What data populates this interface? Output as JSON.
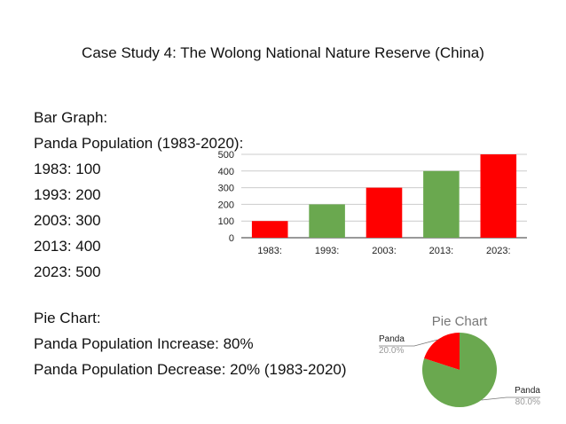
{
  "slide": {
    "title": "Case Study 4: The Wolong National Nature Reserve (China)"
  },
  "bar_section": {
    "heading": "Bar Graph:",
    "subheading": "Panda Population (1983-2020):",
    "lines": [
      "1983: 100",
      "1993: 200",
      "2003: 300",
      "2013: 400",
      "2023: 500"
    ]
  },
  "pie_section": {
    "heading": "Pie Chart:",
    "lines": [
      "Panda Population Increase: 80%",
      "Panda Population Decrease: 20% (1983-2020)"
    ]
  },
  "chart_data": [
    {
      "type": "bar",
      "title": "",
      "categories": [
        "1983:",
        "1993:",
        "2003:",
        "2013:",
        "2023:"
      ],
      "values": [
        100,
        200,
        300,
        400,
        500
      ],
      "colors": [
        "#ff0000",
        "#6aa84f",
        "#ff0000",
        "#6aa84f",
        "#ff0000"
      ],
      "yticks": [
        0,
        100,
        200,
        300,
        400,
        500
      ],
      "ylim": [
        0,
        500
      ],
      "xlabel": "",
      "ylabel": "",
      "grid": true
    },
    {
      "type": "pie",
      "title": "Pie Chart",
      "slices": [
        {
          "label": "Panda",
          "value": 20.0,
          "pct_label": "20.0%",
          "color": "#ff0000"
        },
        {
          "label": "Panda",
          "value": 80.0,
          "pct_label": "80.0%",
          "color": "#6aa84f"
        }
      ]
    }
  ]
}
